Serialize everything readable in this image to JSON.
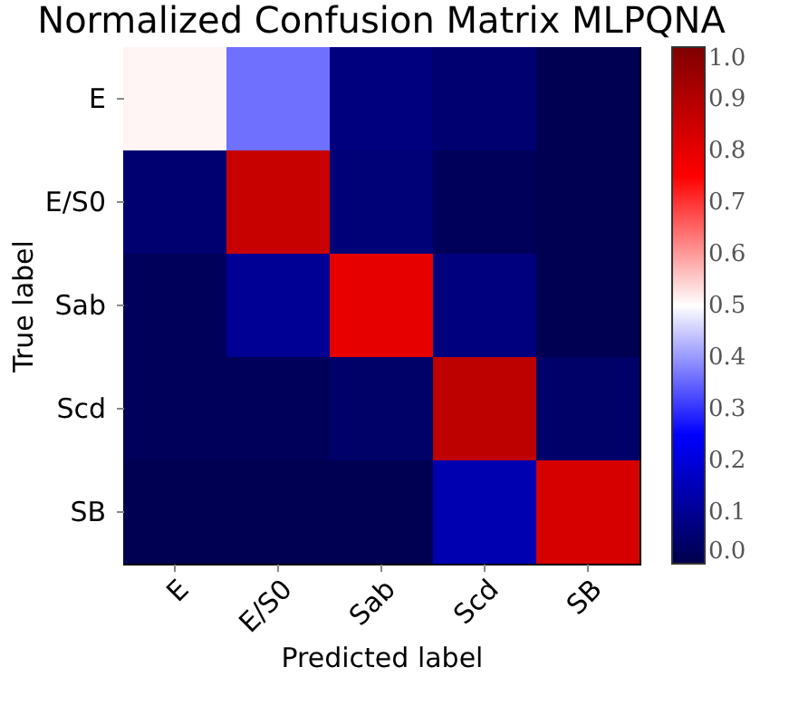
{
  "chart_data": {
    "type": "heatmap",
    "title": "Normalized Confusion Matrix MLPQNA",
    "xlabel": "Predicted label",
    "ylabel": "True label",
    "categories": [
      "E",
      "E/S0",
      "Sab",
      "Scd",
      "SB"
    ],
    "y_categories": [
      "E",
      "E/S0",
      "Sab",
      "Scd",
      "SB"
    ],
    "cells": [
      [
        0.51,
        0.36,
        0.07,
        0.05,
        0.01
      ],
      [
        0.05,
        0.86,
        0.06,
        0.02,
        0.01
      ],
      [
        0.02,
        0.1,
        0.8,
        0.07,
        0.01
      ],
      [
        0.02,
        0.02,
        0.04,
        0.88,
        0.04
      ],
      [
        0.01,
        0.01,
        0.01,
        0.14,
        0.83
      ]
    ],
    "clim": [
      0,
      1
    ],
    "cticks": [
      {
        "value": 0,
        "label": "0.0"
      },
      0.1,
      0.2,
      0.3,
      0.4,
      0.5,
      0.6,
      0.7,
      0.8,
      0.9,
      {
        "value": 1,
        "label": "1.0"
      }
    ]
  }
}
